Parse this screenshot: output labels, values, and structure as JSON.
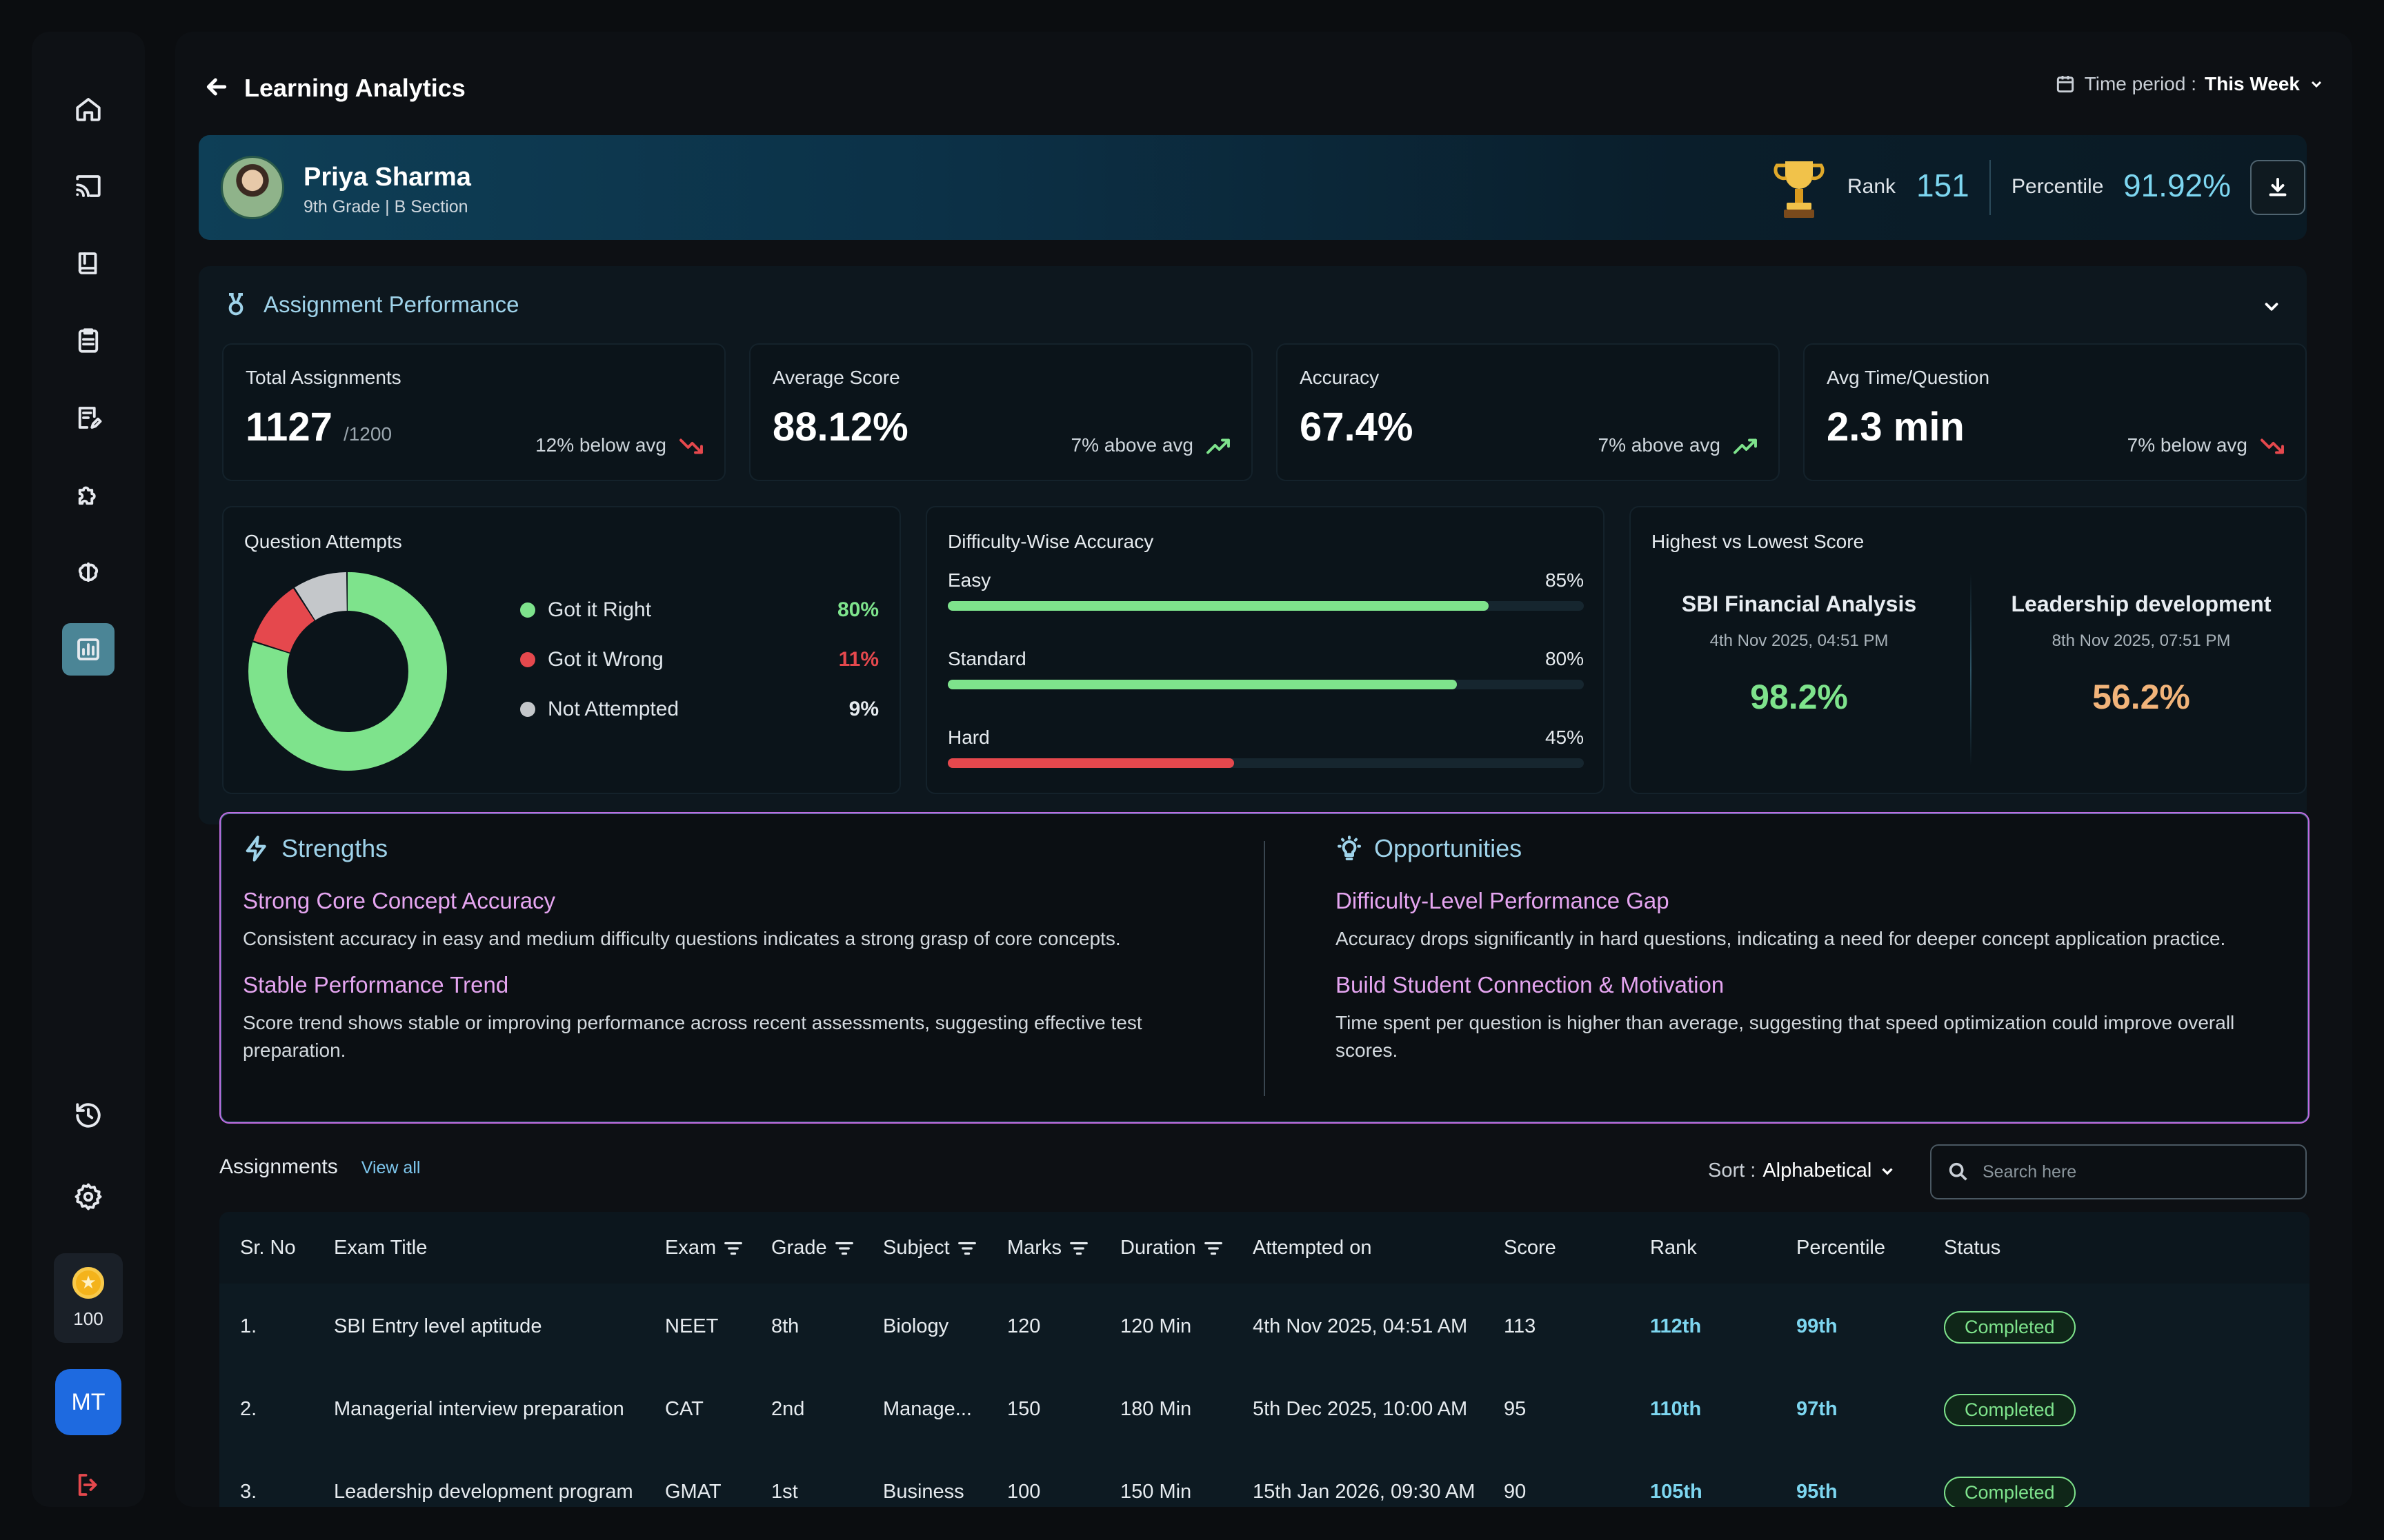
{
  "page": {
    "title": "Learning Analytics"
  },
  "time_period": {
    "label": "Time period :",
    "value": "This Week"
  },
  "sidebar": {
    "items": [
      {
        "name": "home-icon",
        "active": false
      },
      {
        "name": "cast-icon",
        "active": false
      },
      {
        "name": "book-icon",
        "active": false
      },
      {
        "name": "clipboard-icon",
        "active": false
      },
      {
        "name": "edit-document-icon",
        "active": false
      },
      {
        "name": "puzzle-icon",
        "active": false
      },
      {
        "name": "brain-icon",
        "active": false
      },
      {
        "name": "analytics-icon",
        "active": true
      }
    ],
    "coins": "100",
    "user_initials": "MT"
  },
  "profile": {
    "name": "Priya Sharma",
    "grade": "9th Grade | B Section",
    "rank_label": "Rank",
    "rank": "151",
    "percentile_label": "Percentile",
    "percentile": "91.92%"
  },
  "performance": {
    "title": "Assignment Performance",
    "stats": [
      {
        "label": "Total Assignments",
        "value": "1127",
        "suffix": "/1200",
        "trend": "12% below avg",
        "direction": "down"
      },
      {
        "label": "Average Score",
        "value": "88.12%",
        "suffix": "",
        "trend": "7% above avg",
        "direction": "up"
      },
      {
        "label": "Accuracy",
        "value": "67.4%",
        "suffix": "",
        "trend": "7% above avg",
        "direction": "up"
      },
      {
        "label": "Avg Time/Question",
        "value": "2.3 min",
        "suffix": "",
        "trend": "7% below avg",
        "direction": "down"
      }
    ],
    "attempts": {
      "title": "Question Attempts",
      "items": [
        {
          "label": "Got it Right",
          "value": "80%",
          "pct": 80,
          "color": "#7ee38c"
        },
        {
          "label": "Got it Wrong",
          "value": "11%",
          "pct": 11,
          "color": "#e5484d"
        },
        {
          "label": "Not Attempted",
          "value": "9%",
          "pct": 9,
          "color": "#c4c7ca"
        }
      ]
    },
    "difficulty": {
      "title": "Difficulty-Wise Accuracy",
      "items": [
        {
          "label": "Easy",
          "value": "85%",
          "pct": 85,
          "color": "#7ee38c"
        },
        {
          "label": "Standard",
          "value": "80%",
          "pct": 80,
          "color": "#7ee38c"
        },
        {
          "label": "Hard",
          "value": "45%",
          "pct": 45,
          "color": "#e5484d"
        }
      ]
    },
    "high_low": {
      "title": "Highest vs Lowest Score",
      "highest": {
        "title": "SBI Financial Analysis",
        "date": "4th Nov 2025, 04:51 PM",
        "score": "98.2%",
        "color": "#7ee38c"
      },
      "lowest": {
        "title": "Leadership development",
        "date": "8th Nov 2025, 07:51 PM",
        "score": "56.2%",
        "color": "#f2b47a"
      }
    }
  },
  "insights": {
    "strengths": {
      "title": "Strengths",
      "items": [
        {
          "title": "Strong Core Concept Accuracy",
          "desc": "Consistent accuracy in easy and medium difficulty questions indicates a strong grasp of core concepts."
        },
        {
          "title": "Stable Performance Trend",
          "desc": "Score trend shows stable or improving performance across recent assessments, suggesting effective test preparation."
        }
      ]
    },
    "opportunities": {
      "title": "Opportunities",
      "items": [
        {
          "title": "Difficulty-Level Performance Gap",
          "desc": "Accuracy drops significantly in hard questions, indicating a need for deeper concept application practice."
        },
        {
          "title": "Build Student Connection & Motivation",
          "desc": "Time spent per question is higher than average, suggesting that speed optimization could improve overall scores."
        }
      ]
    }
  },
  "assignments": {
    "title": "Assignments",
    "view_all": "View all",
    "sort_label": "Sort :",
    "sort_value": "Alphabetical",
    "search_placeholder": "Search here",
    "columns": [
      "Sr. No",
      "Exam Title",
      "Exam",
      "Grade",
      "Subject",
      "Marks",
      "Duration",
      "Attempted on",
      "Score",
      "Rank",
      "Percentile",
      "Status"
    ],
    "rows": [
      [
        "1.",
        "SBI Entry level aptitude",
        "NEET",
        "8th",
        "Biology",
        "120",
        "120 Min",
        "4th Nov 2025, 04:51 AM",
        "113",
        "112th",
        "99th",
        "Completed"
      ],
      [
        "2.",
        "Managerial interview preparation",
        "CAT",
        "2nd",
        "Manage...",
        "150",
        "180 Min",
        "5th Dec 2025, 10:00 AM",
        "95",
        "110th",
        "97th",
        "Completed"
      ],
      [
        "3.",
        "Leadership development program",
        "GMAT",
        "1st",
        "Business",
        "100",
        "150 Min",
        "15th Jan 2026, 09:30 AM",
        "90",
        "105th",
        "95th",
        "Completed"
      ]
    ]
  }
}
